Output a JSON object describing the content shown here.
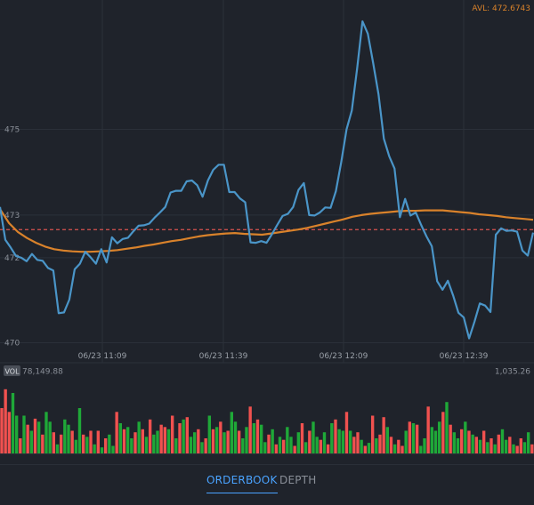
{
  "avl_label": "AVL: 472.6743",
  "vol_badge": "VOL",
  "vol_total": "78,149.88",
  "vol_max": "1,035.26",
  "tabs": {
    "orderbook": "ORDERBOOK",
    "depth": "DEPTH"
  },
  "colors": {
    "price_line": "#4a95c8",
    "avg_line": "#d9822b",
    "ref_line": "#d9534f",
    "vol_up": "#1fa838",
    "vol_down": "#f0514f",
    "tab_active": "#4aa3ff",
    "text_muted": "#8a8f98"
  },
  "chart_data": {
    "type": "line",
    "title": "",
    "x_ticks": [
      "06/23 11:09",
      "06/23 11:39",
      "06/23 12:09",
      "06/23 12:39"
    ],
    "y_ticks": [
      "475",
      "473",
      "472",
      "470"
    ],
    "y_tick_values": [
      474.87,
      472.86,
      471.86,
      469.87
    ],
    "ylim": [
      469.4,
      477.9
    ],
    "reference_line": 472.52,
    "series": [
      {
        "values": [
          473.05,
          472.28,
          472.1,
          471.9,
          471.86,
          471.78,
          471.95,
          471.81,
          471.79,
          471.62,
          471.56,
          470.56,
          470.58,
          470.88,
          471.59,
          471.72,
          472.0,
          471.87,
          471.72,
          472.06,
          471.75,
          472.34,
          472.2,
          472.3,
          472.33,
          472.48,
          472.61,
          472.62,
          472.66,
          472.8,
          472.92,
          473.05,
          473.39,
          473.43,
          473.43,
          473.65,
          473.67,
          473.56,
          473.29,
          473.67,
          473.92,
          474.04,
          474.04,
          473.4,
          473.4,
          473.25,
          473.16,
          472.22,
          472.21,
          472.25,
          472.21,
          472.41,
          472.63,
          472.84,
          472.89,
          473.05,
          473.45,
          473.61,
          472.86,
          472.85,
          472.92,
          473.04,
          473.03,
          473.42,
          474.1,
          474.87,
          475.31,
          476.3,
          477.4,
          477.11,
          476.42,
          475.69,
          474.65,
          474.24,
          473.95,
          472.81,
          473.24,
          472.85,
          472.92,
          472.63,
          472.36,
          472.13,
          471.31,
          471.11,
          471.32,
          470.98,
          470.57,
          470.46,
          469.97,
          470.36,
          470.79,
          470.74,
          470.59,
          472.4,
          472.55,
          472.49,
          472.5,
          472.47,
          472.03,
          471.91,
          472.45
        ]
      },
      {
        "values": [
          473.0,
          472.67,
          472.46,
          472.32,
          472.21,
          472.12,
          472.06,
          472.03,
          472.01,
          472.0,
          472.0,
          472.01,
          472.02,
          472.04,
          472.07,
          472.1,
          472.14,
          472.17,
          472.21,
          472.25,
          472.28,
          472.32,
          472.36,
          472.39,
          472.41,
          472.43,
          472.44,
          472.42,
          472.41,
          472.4,
          472.43,
          472.46,
          472.49,
          472.52,
          472.56,
          472.61,
          472.66,
          472.71,
          472.76,
          472.82,
          472.86,
          472.89,
          472.91,
          472.93,
          472.95,
          472.96,
          472.96,
          472.97,
          472.97,
          472.97,
          472.95,
          472.93,
          472.91,
          472.88,
          472.86,
          472.84,
          472.81,
          472.79,
          472.77,
          472.75
        ]
      }
    ],
    "volume": {
      "max_label": "1,035.26",
      "total_label": "78,149.88",
      "values": [
        0.6,
        0.85,
        0.55,
        0.8,
        0.5,
        0.2,
        0.5,
        0.38,
        0.3,
        0.46,
        0.42,
        0.25,
        0.55,
        0.42,
        0.28,
        0.12,
        0.25,
        0.45,
        0.38,
        0.3,
        0.18,
        0.6,
        0.25,
        0.22,
        0.3,
        0.12,
        0.3,
        0.08,
        0.2,
        0.25,
        0.1,
        0.55,
        0.4,
        0.32,
        0.35,
        0.2,
        0.28,
        0.42,
        0.32,
        0.22,
        0.45,
        0.25,
        0.3,
        0.38,
        0.35,
        0.32,
        0.5,
        0.2,
        0.4,
        0.45,
        0.48,
        0.22,
        0.28,
        0.32,
        0.15,
        0.2,
        0.5,
        0.32,
        0.35,
        0.42,
        0.28,
        0.3,
        0.55,
        0.42,
        0.3,
        0.2,
        0.35,
        0.62,
        0.4,
        0.45,
        0.38,
        0.15,
        0.25,
        0.32,
        0.12,
        0.22,
        0.18,
        0.35,
        0.22,
        0.1,
        0.28,
        0.4,
        0.15,
        0.3,
        0.42,
        0.22,
        0.18,
        0.28,
        0.12,
        0.4,
        0.45,
        0.32,
        0.3,
        0.55,
        0.3,
        0.22,
        0.28,
        0.18,
        0.1,
        0.14,
        0.5,
        0.2,
        0.25,
        0.48,
        0.35,
        0.22,
        0.12,
        0.18,
        0.1,
        0.3,
        0.42,
        0.4,
        0.38,
        0.1,
        0.2,
        0.62,
        0.35,
        0.3,
        0.42,
        0.55,
        0.68,
        0.38,
        0.28,
        0.2,
        0.32,
        0.42,
        0.3,
        0.25,
        0.22,
        0.18,
        0.3,
        0.15,
        0.2,
        0.12,
        0.25,
        0.32,
        0.18,
        0.22,
        0.12,
        0.1,
        0.2,
        0.15,
        0.28,
        0.12
      ],
      "up": [
        0,
        0,
        0,
        1,
        1,
        0,
        1,
        0,
        1,
        0,
        1,
        0,
        1,
        1,
        0,
        1,
        0,
        1,
        1,
        0,
        1,
        1,
        0,
        1,
        0,
        1,
        0,
        1,
        0,
        1,
        1,
        0,
        1,
        0,
        1,
        1,
        0,
        1,
        0,
        1,
        0,
        1,
        1,
        0,
        0,
        1,
        0,
        1,
        0,
        1,
        0,
        1,
        1,
        0,
        1,
        0,
        1,
        0,
        1,
        0,
        1,
        0,
        1,
        1,
        0,
        1,
        1,
        0,
        1,
        0,
        1,
        1,
        0,
        1,
        0,
        1,
        0,
        1,
        1,
        0,
        1,
        0,
        1,
        0,
        1,
        1,
        0,
        1,
        0,
        1,
        0,
        1,
        1,
        0,
        1,
        0,
        0,
        1,
        0,
        1,
        0,
        1,
        0,
        0,
        1,
        0,
        1,
        0,
        0,
        1,
        0,
        1,
        0,
        1,
        1,
        0,
        1,
        1,
        1,
        0,
        1,
        0,
        1,
        1,
        0,
        1,
        0,
        1,
        0,
        1,
        0,
        1,
        0,
        1,
        0,
        1,
        1,
        0,
        1,
        0,
        0,
        1,
        1,
        0
      ]
    }
  }
}
